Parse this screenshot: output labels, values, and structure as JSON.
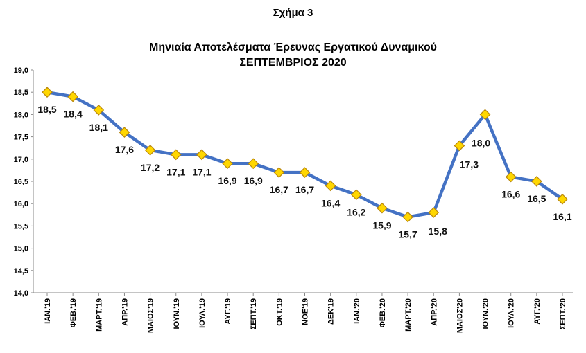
{
  "figure_label": "Σχήμα 3",
  "chart_data": {
    "type": "line",
    "title": "Μηνιαία Αποτελέσματα Έρευνας Εργατικού Δυναμικού",
    "subtitle": "ΣΕΠΤΕΜΒΡΙΟΣ 2020",
    "xlabel": "",
    "ylabel": "",
    "ylim": [
      14.0,
      19.0
    ],
    "ytick_step": 0.5,
    "ytick_labels": [
      "14,0",
      "14,5",
      "15,0",
      "15,5",
      "16,0",
      "16,5",
      "17,0",
      "17,5",
      "18,0",
      "18,5",
      "19,0"
    ],
    "grid": false,
    "legend": "none",
    "categories": [
      "ΙΑΝ.'19",
      "ΦΕΒ.'19",
      "ΜΑΡΤ.'19",
      "ΑΠΡ.'19",
      "ΜΑΙΟΣ'19",
      "ΙΟΥΝ.'19",
      "ΙΟΥΛ.'19",
      "ΑΥΓ.'19",
      "ΣΕΠΤ.'19",
      "ΟΚΤ.'19",
      "ΝΟΕ'19",
      "ΔΕΚ'19",
      "ΙΑΝ.'20",
      "ΦΕΒ.'20",
      "ΜΑΡΤ.'20",
      "ΑΠΡ.'20",
      "ΜΑΙΟΣ'20",
      "ΙΟΥΝ.'20",
      "ΙΟΥΛ.'20",
      "ΑΥΓ.'20",
      "ΣΕΠΤ.'20"
    ],
    "values": [
      18.5,
      18.4,
      18.1,
      17.6,
      17.2,
      17.1,
      17.1,
      16.9,
      16.9,
      16.7,
      16.7,
      16.4,
      16.2,
      15.9,
      15.7,
      15.8,
      17.3,
      18.0,
      16.6,
      16.5,
      16.1
    ],
    "value_labels": [
      "18,5",
      "18,4",
      "18,1",
      "17,6",
      "17,2",
      "17,1",
      "17,1",
      "16,9",
      "16,9",
      "16,7",
      "16,7",
      "16,4",
      "16,2",
      "15,9",
      "15,7",
      "15,8",
      "17,3",
      "18,0",
      "16,6",
      "16,5",
      "16,1"
    ],
    "line_color": "#4472C4",
    "marker_color": "#FFD700",
    "marker_edge": "#B8860B"
  }
}
